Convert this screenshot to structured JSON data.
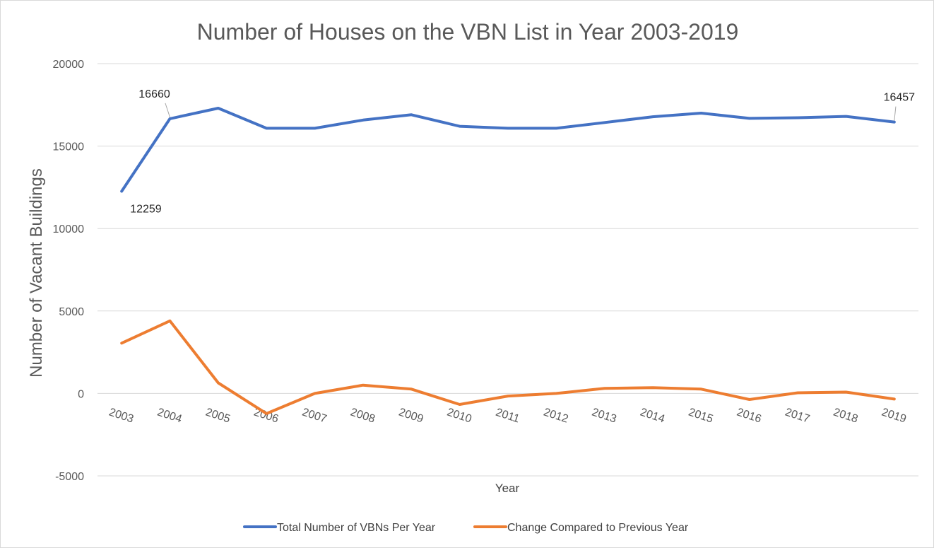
{
  "chart_data": {
    "type": "line",
    "title": "Number of Houses on the VBN List in Year 2003-2019",
    "xlabel": "Year",
    "ylabel": "Number of Vacant Buildings",
    "categories": [
      "2003",
      "2004",
      "2005",
      "2006",
      "2007",
      "2008",
      "2009",
      "2010",
      "2011",
      "2012",
      "2013",
      "2014",
      "2015",
      "2016",
      "2017",
      "2018",
      "2019"
    ],
    "ylim": [
      -5000,
      20000
    ],
    "yticks": [
      "20000",
      "15000",
      "10000",
      "5000",
      "0",
      "-5000"
    ],
    "grid": true,
    "legend_position": "bottom",
    "series": [
      {
        "name": "Total Number of VBNs Per Year",
        "color": "#4472c4",
        "values": [
          12259,
          16660,
          17300,
          16080,
          16080,
          16580,
          16900,
          16200,
          16080,
          16080,
          16430,
          16780,
          17000,
          16680,
          16720,
          16800,
          16457
        ]
      },
      {
        "name": "Change Compared to Previous Year",
        "color": "#ed7d31",
        "values": [
          3050,
          4400,
          640,
          -1220,
          0,
          500,
          260,
          -670,
          -160,
          0,
          310,
          350,
          260,
          -370,
          40,
          80,
          -343
        ]
      }
    ],
    "annotations": [
      {
        "series": 0,
        "index": 0,
        "text": "12259"
      },
      {
        "series": 0,
        "index": 1,
        "text": "16660"
      },
      {
        "series": 0,
        "index": 16,
        "text": "16457"
      }
    ]
  }
}
